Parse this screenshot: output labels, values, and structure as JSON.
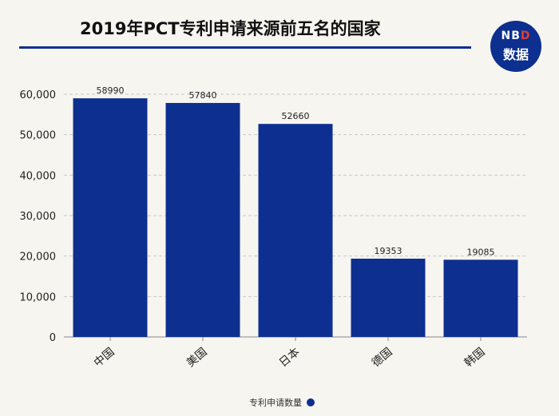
{
  "title": "2019年PCT专利申请来源前五名的国家",
  "logo": {
    "line1_nb": "NB",
    "line1_d": "D",
    "line2": "数据"
  },
  "colors": {
    "bar": "#0d2f8f",
    "accent": "#0d2f8f",
    "grid": "#c8c8c8"
  },
  "chart_data": {
    "type": "bar",
    "title": "2019年PCT专利申请来源前五名的国家",
    "categories": [
      "中国",
      "美国",
      "日本",
      "德国",
      "韩国"
    ],
    "series": [
      {
        "name": "专利申请数量",
        "values": [
          58990,
          57840,
          52660,
          19353,
          19085
        ]
      }
    ],
    "data_labels": [
      "58990",
      "57840",
      "52660",
      "19353",
      "19085"
    ],
    "y_ticks": [
      "0",
      "10,000",
      "20,000",
      "30,000",
      "40,000",
      "50,000",
      "60,000"
    ],
    "ylim": [
      0,
      60000
    ],
    "xlabel": "",
    "ylabel": "",
    "grid": true,
    "legend_position": "bottom"
  },
  "legend": {
    "label": "专利申请数量"
  }
}
